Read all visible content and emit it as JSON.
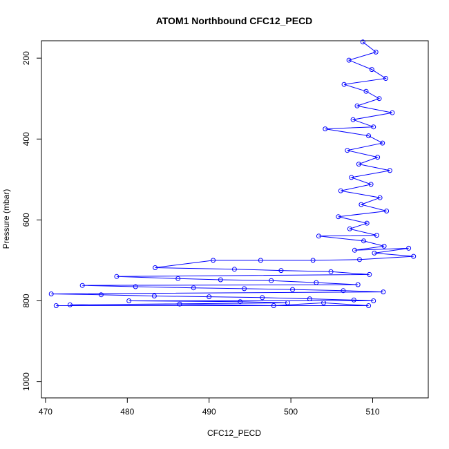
{
  "chart_data": {
    "type": "scatter",
    "title": "ATOM1 Northbound CFC12_PECD",
    "xlabel": "CFC12_PECD",
    "ylabel": "Pressure (mbar)",
    "xlim": [
      469.5,
      516.8
    ],
    "ylim": [
      1040,
      157
    ],
    "y_reversed": true,
    "x_ticks": [
      470,
      480,
      490,
      500,
      510
    ],
    "y_ticks": [
      200,
      400,
      600,
      800,
      1000
    ],
    "grid": false,
    "legend": "none",
    "colors": {
      "series": "#0000ff",
      "axis": "#000000"
    },
    "series": [
      {
        "values": [
          [
            508.8,
            160
          ],
          [
            510.4,
            185
          ],
          [
            507.1,
            205
          ],
          [
            509.9,
            228
          ],
          [
            511.6,
            250
          ],
          [
            506.5,
            265
          ],
          [
            509.2,
            282
          ],
          [
            510.8,
            300
          ],
          [
            508.1,
            318
          ],
          [
            512.4,
            335
          ],
          [
            507.6,
            352
          ],
          [
            510.1,
            370
          ],
          [
            504.2,
            375
          ],
          [
            509.5,
            392
          ],
          [
            511.2,
            410
          ],
          [
            506.9,
            428
          ],
          [
            510.6,
            445
          ],
          [
            508.3,
            462
          ],
          [
            512.1,
            478
          ],
          [
            507.4,
            495
          ],
          [
            509.8,
            512
          ],
          [
            506.1,
            528
          ],
          [
            510.9,
            545
          ],
          [
            508.6,
            562
          ],
          [
            511.7,
            578
          ],
          [
            505.8,
            592
          ],
          [
            509.3,
            608
          ],
          [
            507.2,
            622
          ],
          [
            510.5,
            638
          ],
          [
            503.4,
            640
          ],
          [
            508.9,
            652
          ],
          [
            511.4,
            665
          ],
          [
            507.8,
            675
          ],
          [
            514.4,
            670
          ],
          [
            510.2,
            682
          ],
          [
            515.0,
            690
          ],
          [
            508.4,
            698
          ],
          [
            502.7,
            700
          ],
          [
            496.3,
            700
          ],
          [
            490.5,
            700
          ],
          [
            483.4,
            718
          ],
          [
            493.1,
            722
          ],
          [
            498.8,
            725
          ],
          [
            504.9,
            728
          ],
          [
            509.6,
            735
          ],
          [
            478.7,
            740
          ],
          [
            486.2,
            745
          ],
          [
            491.4,
            748
          ],
          [
            497.6,
            750
          ],
          [
            503.1,
            755
          ],
          [
            508.2,
            760
          ],
          [
            474.5,
            762
          ],
          [
            481.0,
            765
          ],
          [
            488.1,
            768
          ],
          [
            494.3,
            770
          ],
          [
            500.2,
            772
          ],
          [
            506.4,
            775
          ],
          [
            511.3,
            778
          ],
          [
            470.7,
            783
          ],
          [
            476.8,
            785
          ],
          [
            483.3,
            788
          ],
          [
            490.0,
            790
          ],
          [
            496.5,
            792
          ],
          [
            502.3,
            795
          ],
          [
            507.7,
            798
          ],
          [
            510.1,
            800
          ],
          [
            480.2,
            800
          ],
          [
            493.8,
            802
          ],
          [
            499.6,
            805
          ],
          [
            473.0,
            810
          ],
          [
            486.4,
            808
          ],
          [
            497.9,
            812
          ],
          [
            504.0,
            805
          ],
          [
            509.5,
            812
          ],
          [
            471.3,
            812
          ]
        ]
      }
    ]
  }
}
